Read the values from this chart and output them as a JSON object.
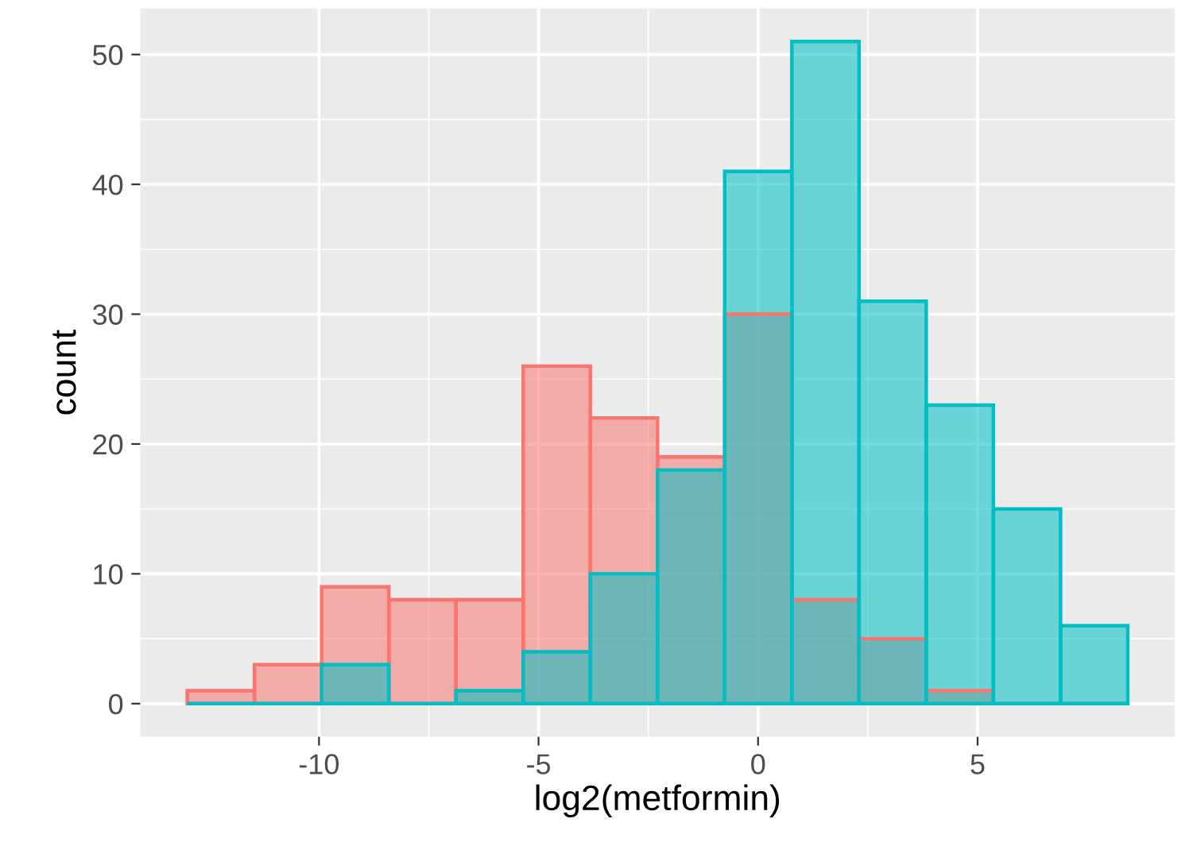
{
  "chart_data": {
    "type": "histogram",
    "xlabel": "log2(metformin)",
    "ylabel": "count",
    "bins": [
      -13.0,
      -11.47,
      -9.94,
      -8.41,
      -6.88,
      -5.35,
      -3.82,
      -2.29,
      -0.76,
      0.77,
      2.3,
      3.83,
      5.36,
      6.89,
      8.42
    ],
    "series": [
      {
        "color": "#f8766d",
        "values": [
          1,
          3,
          9,
          8,
          8,
          26,
          22,
          19,
          30,
          8,
          5,
          1,
          0,
          0
        ]
      },
      {
        "color": "#00bfc4",
        "values": [
          0,
          0,
          3,
          0,
          1,
          4,
          10,
          18,
          41,
          51,
          31,
          23,
          15,
          6
        ]
      }
    ],
    "xlim": [
      -14.07,
      9.49
    ],
    "ylim": [
      -2.55,
      53.55
    ],
    "xticks": [
      -10,
      -5,
      0,
      5
    ],
    "yticks": [
      0,
      10,
      20,
      30,
      40,
      50
    ],
    "grid": true
  }
}
